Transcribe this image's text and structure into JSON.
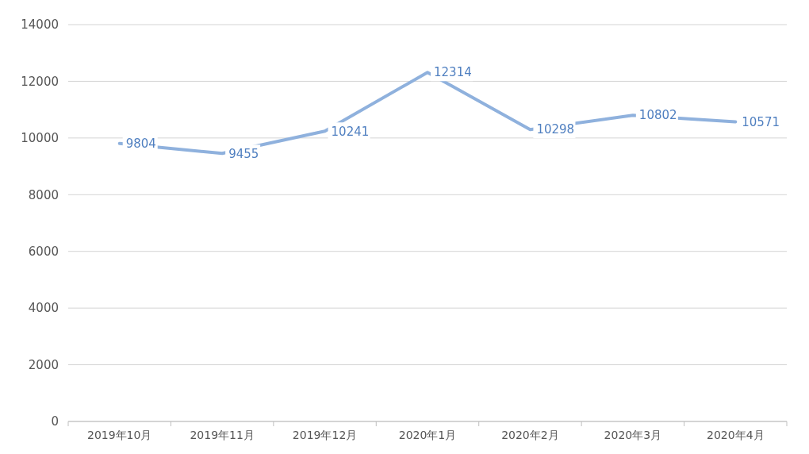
{
  "chart_data": {
    "type": "line",
    "categories": [
      "2019年10月",
      "2019年11月",
      "2019年12月",
      "2020年1月",
      "2020年2月",
      "2020年3月",
      "2020年4月"
    ],
    "series": [
      {
        "color": "#8fb1dd",
        "values": [
          9804,
          9455,
          10241,
          12314,
          10298,
          10802,
          10571
        ]
      }
    ],
    "ylim": [
      0,
      14000
    ],
    "yticks": [
      0,
      2000,
      4000,
      6000,
      8000,
      10000,
      12000,
      14000
    ],
    "grid": "y",
    "data_labels": true,
    "marker": "none",
    "line_style": "solid"
  }
}
